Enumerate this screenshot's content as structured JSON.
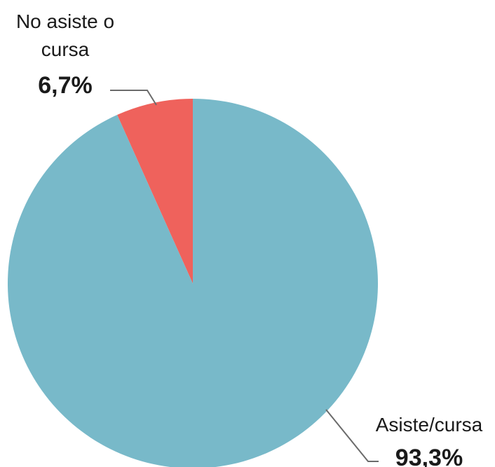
{
  "chart_data": {
    "type": "pie",
    "title": "",
    "slices": [
      {
        "label_lines": [
          "No asiste o",
          "cursa"
        ],
        "value": 6.7,
        "value_label": "6,7%",
        "color": "#ef625c"
      },
      {
        "label_lines": [
          "Asiste/cursa"
        ],
        "value": 93.3,
        "value_label": "93,3%",
        "color": "#78b9c9"
      }
    ],
    "start_angle": "12 o'clock",
    "direction": "counter-clockwise",
    "legend": "none (direct labels)"
  }
}
